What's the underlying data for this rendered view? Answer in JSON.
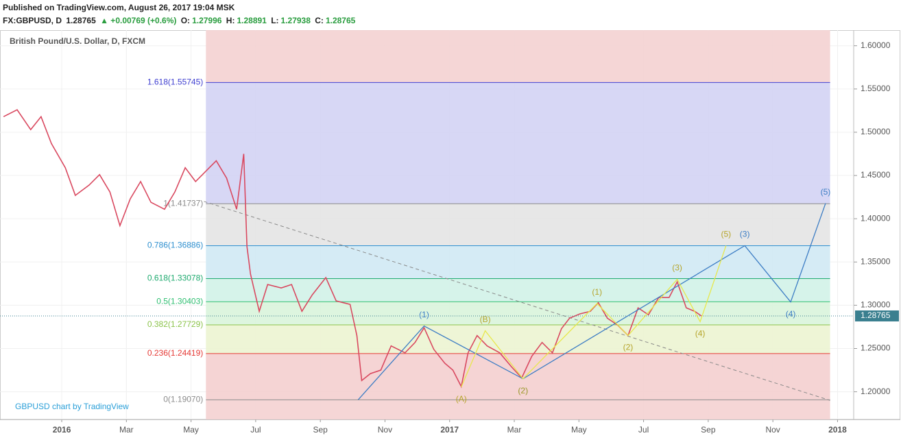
{
  "chart_data": {
    "type": "line",
    "header": {
      "published": "Published on TradingView.com, August 26, 2017 19:04 MSK",
      "symbol": "FX:GBPUSD, D",
      "price": "1.28765",
      "change": "▲ +0.00769 (+0.6%)",
      "o_label": "O:",
      "o": "1.27996",
      "h_label": "H:",
      "h": "1.28891",
      "l_label": "L:",
      "l": "1.27938",
      "c_label": "C:",
      "c": "1.28765"
    },
    "title": "British Pound/U.S. Dollar, D, FXCM",
    "watermark": "GBPUSD chart by TradingView",
    "xlim": [
      -1.91,
      24.5
    ],
    "ylim": [
      1.168,
      1.618
    ],
    "xticks": [
      {
        "value": 0,
        "label": "2016"
      },
      {
        "value": 2,
        "label": "Mar"
      },
      {
        "value": 4,
        "label": "May"
      },
      {
        "value": 6,
        "label": "Jul"
      },
      {
        "value": 8,
        "label": "Sep"
      },
      {
        "value": 10,
        "label": "Nov"
      },
      {
        "value": 12,
        "label": "2017"
      },
      {
        "value": 14,
        "label": "Mar"
      },
      {
        "value": 16,
        "label": "May"
      },
      {
        "value": 18,
        "label": "Jul"
      },
      {
        "value": 20,
        "label": "Sep"
      },
      {
        "value": 22,
        "label": "Nov"
      },
      {
        "value": 24,
        "label": "2018"
      }
    ],
    "yticks": [
      {
        "value": 1.2,
        "label": "1.20000"
      },
      {
        "value": 1.25,
        "label": "1.25000"
      },
      {
        "value": 1.3,
        "label": "1.30000"
      },
      {
        "value": 1.35,
        "label": "1.35000"
      },
      {
        "value": 1.4,
        "label": "1.40000"
      },
      {
        "value": 1.45,
        "label": "1.45000"
      },
      {
        "value": 1.5,
        "label": "1.50000"
      },
      {
        "value": 1.55,
        "label": "1.55000"
      },
      {
        "value": 1.6,
        "label": "1.60000"
      }
    ],
    "grid": true,
    "last_price": 1.28765,
    "series": [
      {
        "name": "GBPUSD",
        "color": "#d9485f",
        "x": [
          -1.8,
          -1.38,
          -0.96,
          -0.64,
          -0.32,
          0.11,
          0.42,
          0.85,
          1.17,
          1.49,
          1.8,
          2.12,
          2.44,
          2.76,
          3.18,
          3.5,
          3.82,
          4.14,
          4.46,
          4.78,
          5.1,
          5.41,
          5.63,
          5.73,
          5.84,
          6.11,
          6.37,
          6.79,
          7.11,
          7.43,
          7.75,
          8.17,
          8.49,
          8.92,
          9.13,
          9.28,
          9.55,
          9.87,
          10.19,
          10.62,
          10.93,
          11.21,
          11.51,
          11.85,
          12.1,
          12.36,
          12.57,
          12.85,
          13.16,
          13.55,
          13.91,
          14.23,
          14.54,
          14.86,
          15.18,
          15.46,
          15.71,
          16.03,
          16.35,
          16.6,
          16.88,
          17.2,
          17.52,
          17.83,
          18.15,
          18.47,
          18.79,
          19.04,
          19.32,
          19.58,
          19.79
        ],
        "values": [
          1.518,
          1.526,
          1.503,
          1.518,
          1.487,
          1.459,
          1.427,
          1.439,
          1.451,
          1.431,
          1.392,
          1.423,
          1.443,
          1.419,
          1.411,
          1.431,
          1.459,
          1.443,
          1.455,
          1.467,
          1.447,
          1.411,
          1.475,
          1.368,
          1.336,
          1.293,
          1.324,
          1.32,
          1.324,
          1.293,
          1.312,
          1.332,
          1.305,
          1.301,
          1.265,
          1.213,
          1.221,
          1.225,
          1.253,
          1.245,
          1.257,
          1.274,
          1.249,
          1.233,
          1.225,
          1.206,
          1.245,
          1.265,
          1.253,
          1.245,
          1.229,
          1.216,
          1.241,
          1.257,
          1.245,
          1.273,
          1.285,
          1.29,
          1.293,
          1.303,
          1.285,
          1.277,
          1.265,
          1.297,
          1.289,
          1.309,
          1.309,
          1.327,
          1.297,
          1.293,
          1.28765
        ]
      }
    ],
    "fib_range": [
      4.46,
      23.77
    ],
    "fib_levels": [
      {
        "label": "0(1.19070)",
        "value": 1.1907,
        "color": "#8c8c8c"
      },
      {
        "label": "0.236(1.24419)",
        "value": 1.24419,
        "color": "#e53935"
      },
      {
        "label": "0.382(1.27729)",
        "value": 1.27729,
        "color": "#8bc34a"
      },
      {
        "label": "0.5(1.30403)",
        "value": 1.30403,
        "color": "#2fbf71"
      },
      {
        "label": "0.618(1.33078)",
        "value": 1.33078,
        "color": "#1faa6f"
      },
      {
        "label": "0.786(1.36886)",
        "value": 1.36886,
        "color": "#2d8fcf"
      },
      {
        "label": "1(1.41737)",
        "value": 1.41737,
        "color": "#8c8c8c"
      },
      {
        "label": "1.618(1.55745)",
        "value": 1.55745,
        "color": "#3f3fd0"
      }
    ],
    "fib_zone_colors": [
      "#f4cfcf",
      "#ecf4d2",
      "#d9f4dc",
      "#d2f2e8",
      "#d0e9f4",
      "#e4e4e4",
      "#d3d3f4",
      "#f4d2d2"
    ],
    "trendline": {
      "x": [
        4.4,
        23.77
      ],
      "values": [
        1.42,
        1.19
      ]
    },
    "waves": [
      {
        "name": "blue",
        "color": "#3b7cc4",
        "x": [
          9.17,
          11.21,
          14.27,
          21.13,
          22.55,
          23.63
        ],
        "values": [
          1.1907,
          1.276,
          1.215,
          1.3689,
          1.3038,
          1.4178
        ],
        "labels": [
          null,
          "(1)",
          "(2)",
          "(3)",
          "(4)",
          "(5)"
        ]
      },
      {
        "name": "yellow",
        "color": "#e8e84a",
        "label_color": "#b5a42a",
        "x": [
          12.36,
          13.1,
          14.27,
          16.56,
          17.52,
          19.04,
          19.75,
          20.55
        ],
        "values": [
          1.2055,
          1.2705,
          1.215,
          1.302,
          1.265,
          1.33,
          1.281,
          1.3689
        ],
        "labels": [
          "(A)",
          "(B)",
          "(2)",
          "(1)",
          "(2)",
          "(3)",
          "(4)",
          "(5)"
        ]
      }
    ]
  }
}
